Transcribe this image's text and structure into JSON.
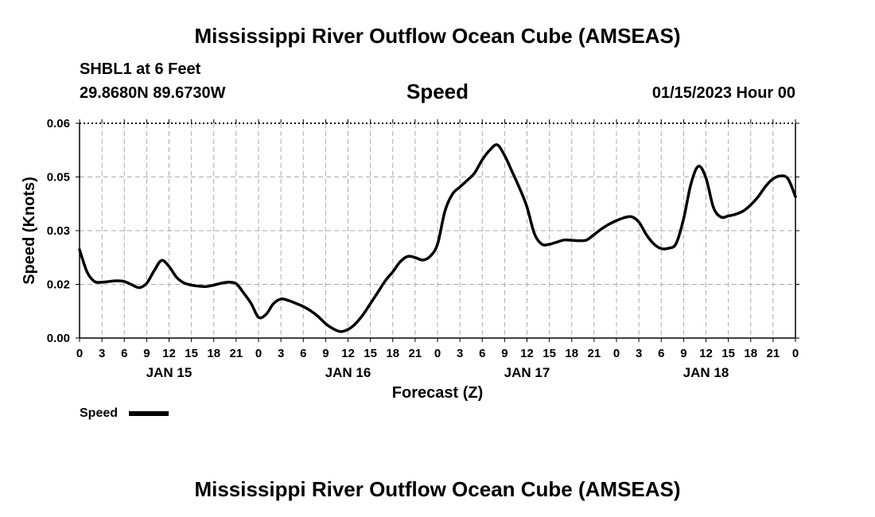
{
  "header": {
    "title": "Mississippi River Outflow Ocean Cube (AMSEAS)",
    "station": "SHBL1 at 6 Feet",
    "location": "29.8680N  89.6730W",
    "variable": "Speed",
    "datetime": "01/15/2023 Hour 00"
  },
  "footer": {
    "title": "Mississippi River Outflow Ocean Cube (AMSEAS)"
  },
  "chart_data": {
    "type": "line",
    "title": "Speed",
    "xlabel": "Forecast (Z)",
    "ylabel": "Speed (Knots)",
    "xlim": [
      0,
      96
    ],
    "ylim": [
      0,
      0.06
    ],
    "yticks": [
      0,
      0.015,
      0.03,
      0.045,
      0.06
    ],
    "ytick_labels": [
      "0.00",
      "0.02",
      "0.03",
      "0.05",
      "0.06"
    ],
    "x_tick_labels": [
      "0",
      "3",
      "6",
      "9",
      "12",
      "15",
      "18",
      "21",
      "0",
      "3",
      "6",
      "9",
      "12",
      "15",
      "18",
      "21",
      "0",
      "3",
      "6",
      "9",
      "12",
      "15",
      "18",
      "21",
      "0",
      "3",
      "6",
      "9",
      "12",
      "15",
      "18",
      "21",
      "0"
    ],
    "day_labels": [
      {
        "label": "JAN 15",
        "hour": 12
      },
      {
        "label": "JAN 16",
        "hour": 36
      },
      {
        "label": "JAN 17",
        "hour": 60
      },
      {
        "label": "JAN 18",
        "hour": 84
      }
    ],
    "grid": true,
    "legend": "bottom-left",
    "series": [
      {
        "name": "Speed",
        "color": "#000000",
        "x": [
          0,
          1,
          2,
          3,
          4,
          5,
          6,
          7,
          8,
          9,
          10,
          11,
          12,
          13,
          14,
          15,
          16,
          17,
          18,
          19,
          20,
          21,
          22,
          23,
          24,
          25,
          26,
          27,
          28,
          29,
          30,
          31,
          32,
          33,
          34,
          35,
          36,
          37,
          38,
          39,
          40,
          41,
          42,
          43,
          44,
          45,
          46,
          47,
          48,
          49,
          50,
          51,
          52,
          53,
          54,
          55,
          56,
          57,
          58,
          59,
          60,
          61,
          62,
          63,
          64,
          65,
          66,
          67,
          68,
          69,
          70,
          71,
          72,
          73,
          74,
          75,
          76,
          77,
          78,
          79,
          80,
          81,
          82,
          83,
          84,
          85,
          86,
          87,
          88,
          89,
          90,
          91,
          92,
          93,
          94,
          95,
          96
        ],
        "values": [
          0.0247,
          0.0185,
          0.0158,
          0.0156,
          0.0158,
          0.016,
          0.0158,
          0.0149,
          0.0141,
          0.0153,
          0.0188,
          0.0217,
          0.02,
          0.017,
          0.0154,
          0.0148,
          0.0145,
          0.0144,
          0.0148,
          0.0153,
          0.0156,
          0.0152,
          0.0126,
          0.0097,
          0.0058,
          0.0066,
          0.0096,
          0.0109,
          0.0105,
          0.0097,
          0.0088,
          0.0076,
          0.006,
          0.004,
          0.0026,
          0.0018,
          0.0024,
          0.004,
          0.0065,
          0.0096,
          0.0128,
          0.016,
          0.0185,
          0.0213,
          0.0228,
          0.0225,
          0.0218,
          0.0228,
          0.0262,
          0.0355,
          0.0402,
          0.0422,
          0.0441,
          0.0462,
          0.0498,
          0.0525,
          0.054,
          0.051,
          0.0465,
          0.0419,
          0.0366,
          0.0291,
          0.0262,
          0.0262,
          0.0268,
          0.0274,
          0.0273,
          0.0272,
          0.0274,
          0.0289,
          0.0305,
          0.0318,
          0.0328,
          0.0336,
          0.0339,
          0.0324,
          0.0289,
          0.0263,
          0.025,
          0.0251,
          0.0264,
          0.0333,
          0.0432,
          0.048,
          0.0447,
          0.0365,
          0.0338,
          0.0341,
          0.0346,
          0.0355,
          0.0372,
          0.0395,
          0.0424,
          0.0445,
          0.0453,
          0.0445,
          0.0395
        ]
      }
    ]
  }
}
